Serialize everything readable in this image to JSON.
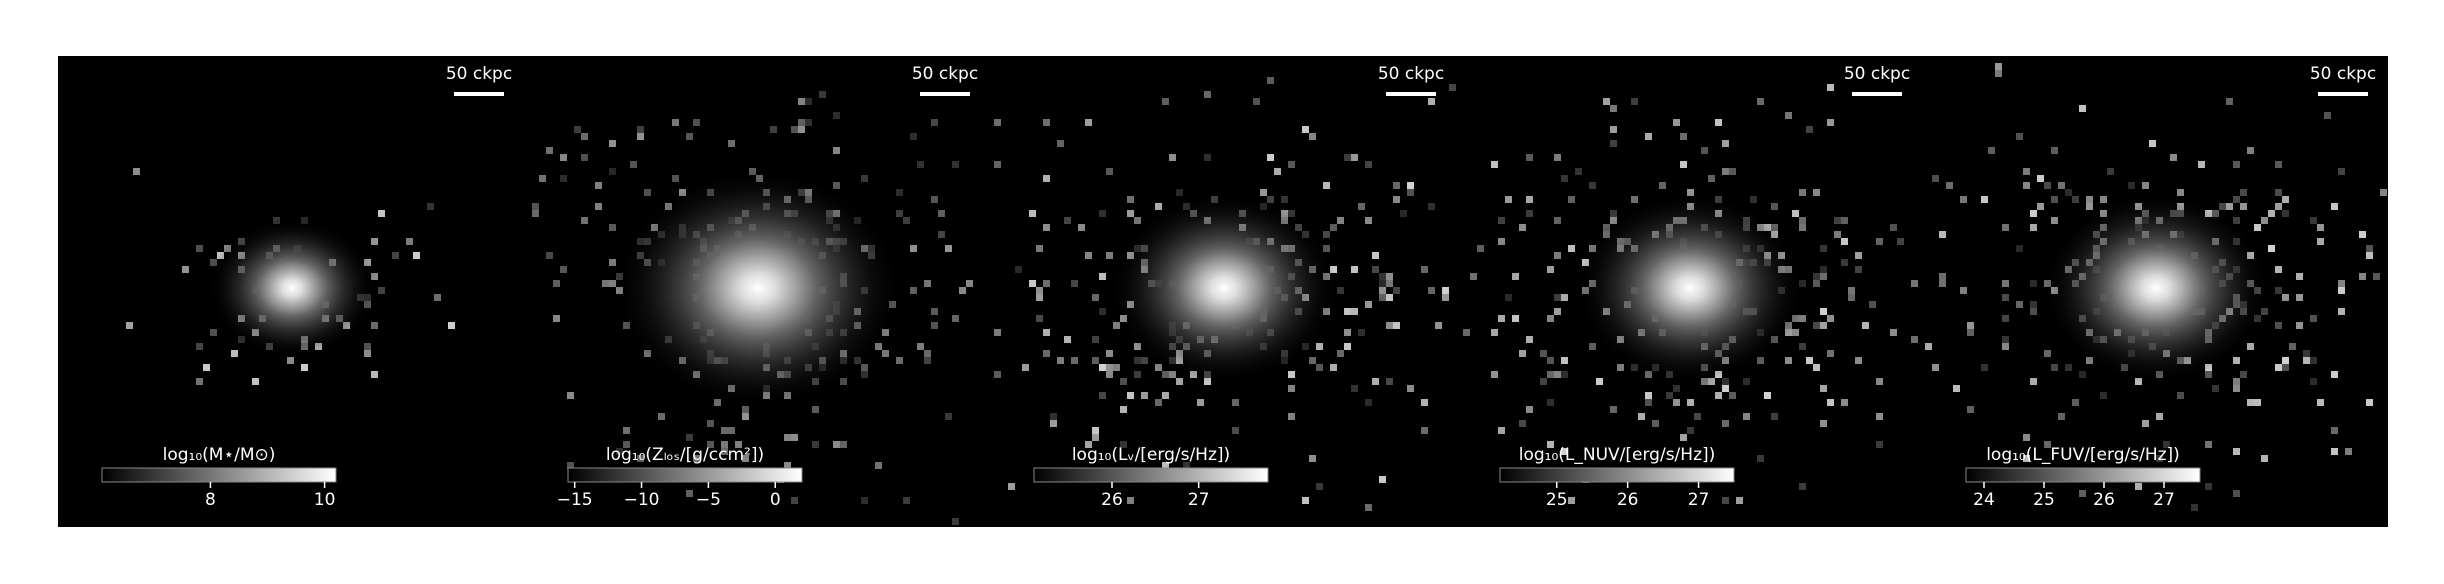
{
  "chart_data": [
    {
      "type": "heatmap",
      "scale_bar": "50 ckpc",
      "colorbar_label": "log₁₀(M⋆/M⊙)",
      "clim": [
        6.1,
        10.2
      ],
      "cticks": [
        8,
        10
      ]
    },
    {
      "type": "heatmap",
      "scale_bar": "50 ckpc",
      "colorbar_label": "log₁₀(Zₗₒₛ/[g/ccm²])",
      "clim": [
        -15.5,
        2
      ],
      "cticks": [
        {
          "value": -15,
          "label": "−15"
        },
        {
          "value": -10,
          "label": "−10"
        },
        {
          "value": -5,
          "label": "−5"
        },
        0
      ]
    },
    {
      "type": "heatmap",
      "scale_bar": "50 ckpc",
      "colorbar_label": "log₁₀(Lᵥ/[erg/s/Hz])",
      "clim": [
        25.1,
        27.8
      ],
      "cticks": [
        26,
        27
      ]
    },
    {
      "type": "heatmap",
      "scale_bar": "50 ckpc",
      "colorbar_label": "log₁₀(L_NUV/[erg/s/Hz])",
      "clim": [
        24.2,
        27.5
      ],
      "cticks": [
        25,
        26,
        27
      ]
    },
    {
      "type": "heatmap",
      "scale_bar": "50 ckpc",
      "colorbar_label": "log₁₀(L_FUV/[erg/s/Hz])",
      "clim": [
        23.7,
        27.6
      ],
      "cticks": [
        24,
        25,
        26,
        27
      ]
    }
  ]
}
